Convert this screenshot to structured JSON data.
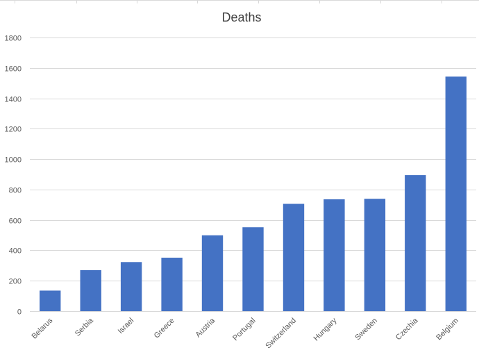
{
  "chart_data": {
    "type": "bar",
    "title": "Deaths",
    "xlabel": "",
    "ylabel": "",
    "categories": [
      "Belarus",
      "Serbia",
      "Israel",
      "Greece",
      "Austria",
      "Portugal",
      "Switzerland",
      "Hungary",
      "Sweden",
      "Czechia",
      "Belgium"
    ],
    "values": [
      135,
      270,
      323,
      352,
      499,
      552,
      706,
      736,
      739,
      895,
      1543
    ],
    "ylim": [
      0,
      1800
    ],
    "yticks": [
      0,
      200,
      400,
      600,
      800,
      1000,
      1200,
      1400,
      1600,
      1800
    ],
    "grid": true,
    "legend": "none",
    "bar_color": "#4472c4"
  }
}
